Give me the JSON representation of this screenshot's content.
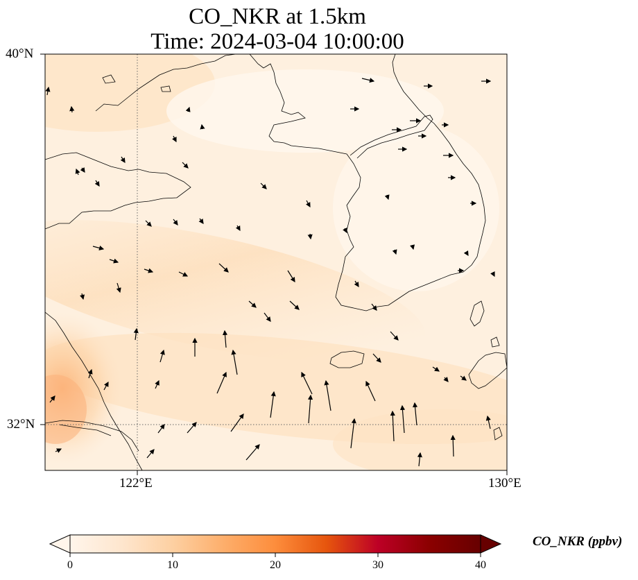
{
  "title": {
    "line1": "CO_NKR at 1.5km",
    "line2": "Time: 2024-03-04 10:00:00"
  },
  "map": {
    "lat_labels": [
      "40°N",
      "32°N"
    ],
    "lon_labels": [
      "122°E",
      "130°E"
    ],
    "lat_range": [
      31,
      40
    ],
    "lon_range": [
      120,
      130
    ],
    "gridlines": {
      "lat": [
        32
      ],
      "lon": [
        122
      ],
      "style": "dotted"
    },
    "field_description_colors": {
      "low": "#fff5eb",
      "mid": "#fdd9ad",
      "high": "#fcae70"
    }
  },
  "colorbar": {
    "label": "CO_NKR (ppbv)",
    "ticks": [
      "0",
      "10",
      "20",
      "30",
      "40"
    ],
    "range": [
      0,
      40
    ],
    "colormap": "Oranges-Reds",
    "stops": [
      "#fff5eb",
      "#fee6ce",
      "#fdd0a2",
      "#fdae6b",
      "#fd8d3c",
      "#e6550d",
      "#bd0026",
      "#8b0000",
      "#670000"
    ]
  }
}
